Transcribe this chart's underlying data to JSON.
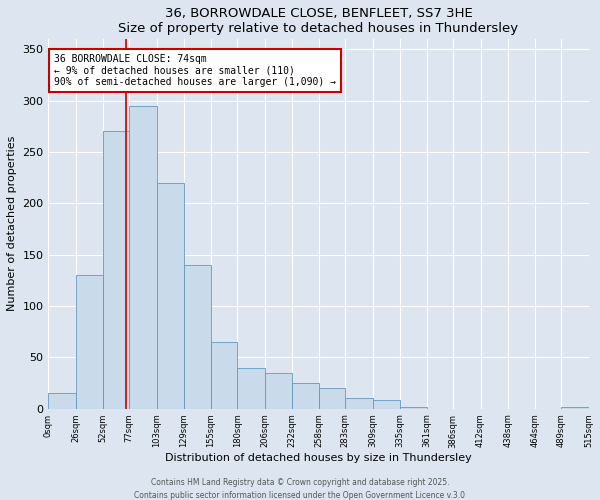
{
  "title1": "36, BORROWDALE CLOSE, BENFLEET, SS7 3HE",
  "title2": "Size of property relative to detached houses in Thundersley",
  "xlabel": "Distribution of detached houses by size in Thundersley",
  "ylabel": "Number of detached properties",
  "bin_edges": [
    0,
    26,
    52,
    77,
    103,
    129,
    155,
    180,
    206,
    232,
    258,
    283,
    309,
    335,
    361,
    386,
    412,
    438,
    464,
    489,
    515
  ],
  "bar_heights": [
    15,
    130,
    270,
    295,
    220,
    140,
    65,
    40,
    35,
    25,
    20,
    10,
    8,
    2,
    0,
    0,
    0,
    0,
    0,
    2
  ],
  "bar_color": "#c9daea",
  "bar_edgecolor": "#6699bb",
  "property_line_x": 74,
  "property_line_color": "#cc0000",
  "annotation_text": "36 BORROWDALE CLOSE: 74sqm\n← 9% of detached houses are smaller (110)\n90% of semi-detached houses are larger (1,090) →",
  "annotation_box_color": "#ffffff",
  "annotation_box_edgecolor": "#cc0000",
  "ylim": [
    0,
    360
  ],
  "yticks": [
    0,
    50,
    100,
    150,
    200,
    250,
    300,
    350
  ],
  "background_color": "#dde6f0",
  "grid_color": "#ffffff",
  "footer1": "Contains HM Land Registry data © Crown copyright and database right 2025.",
  "footer2": "Contains public sector information licensed under the Open Government Licence v.3.0"
}
